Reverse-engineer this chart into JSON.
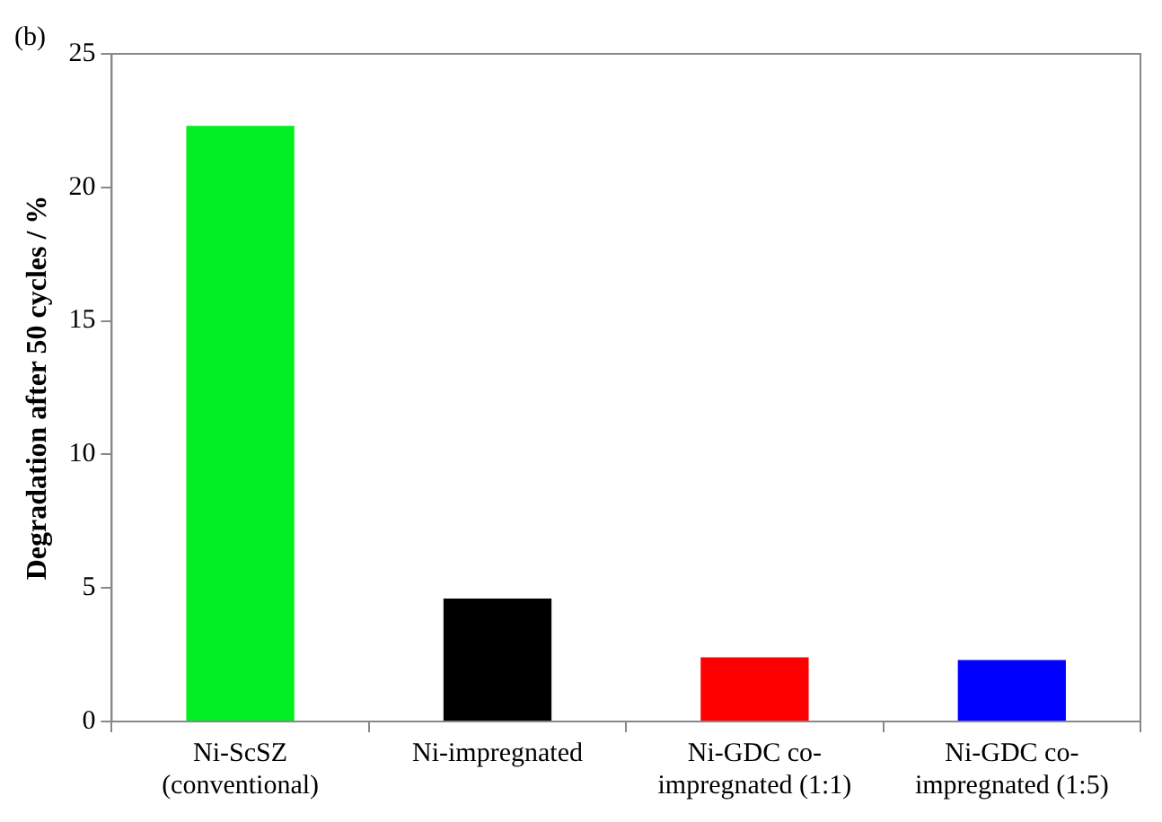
{
  "chart_data": {
    "type": "bar",
    "title": "(b)",
    "ylabel": "Degradation after 50 cycles / %",
    "categories": [
      "Ni-ScSZ\n(conventional)",
      "Ni-impregnated",
      "Ni-GDC co-\nimpregnated (1:1)",
      "Ni-GDC co-\nimpregnated (1:5)"
    ],
    "values": [
      22.3,
      4.6,
      2.4,
      2.3
    ],
    "colors": [
      "#00ee22",
      "#000000",
      "#ff0000",
      "#0000ff"
    ],
    "ylim": [
      0,
      25
    ],
    "yticks": [
      0,
      5,
      10,
      15,
      20,
      25
    ],
    "grid": false,
    "legend": false
  }
}
